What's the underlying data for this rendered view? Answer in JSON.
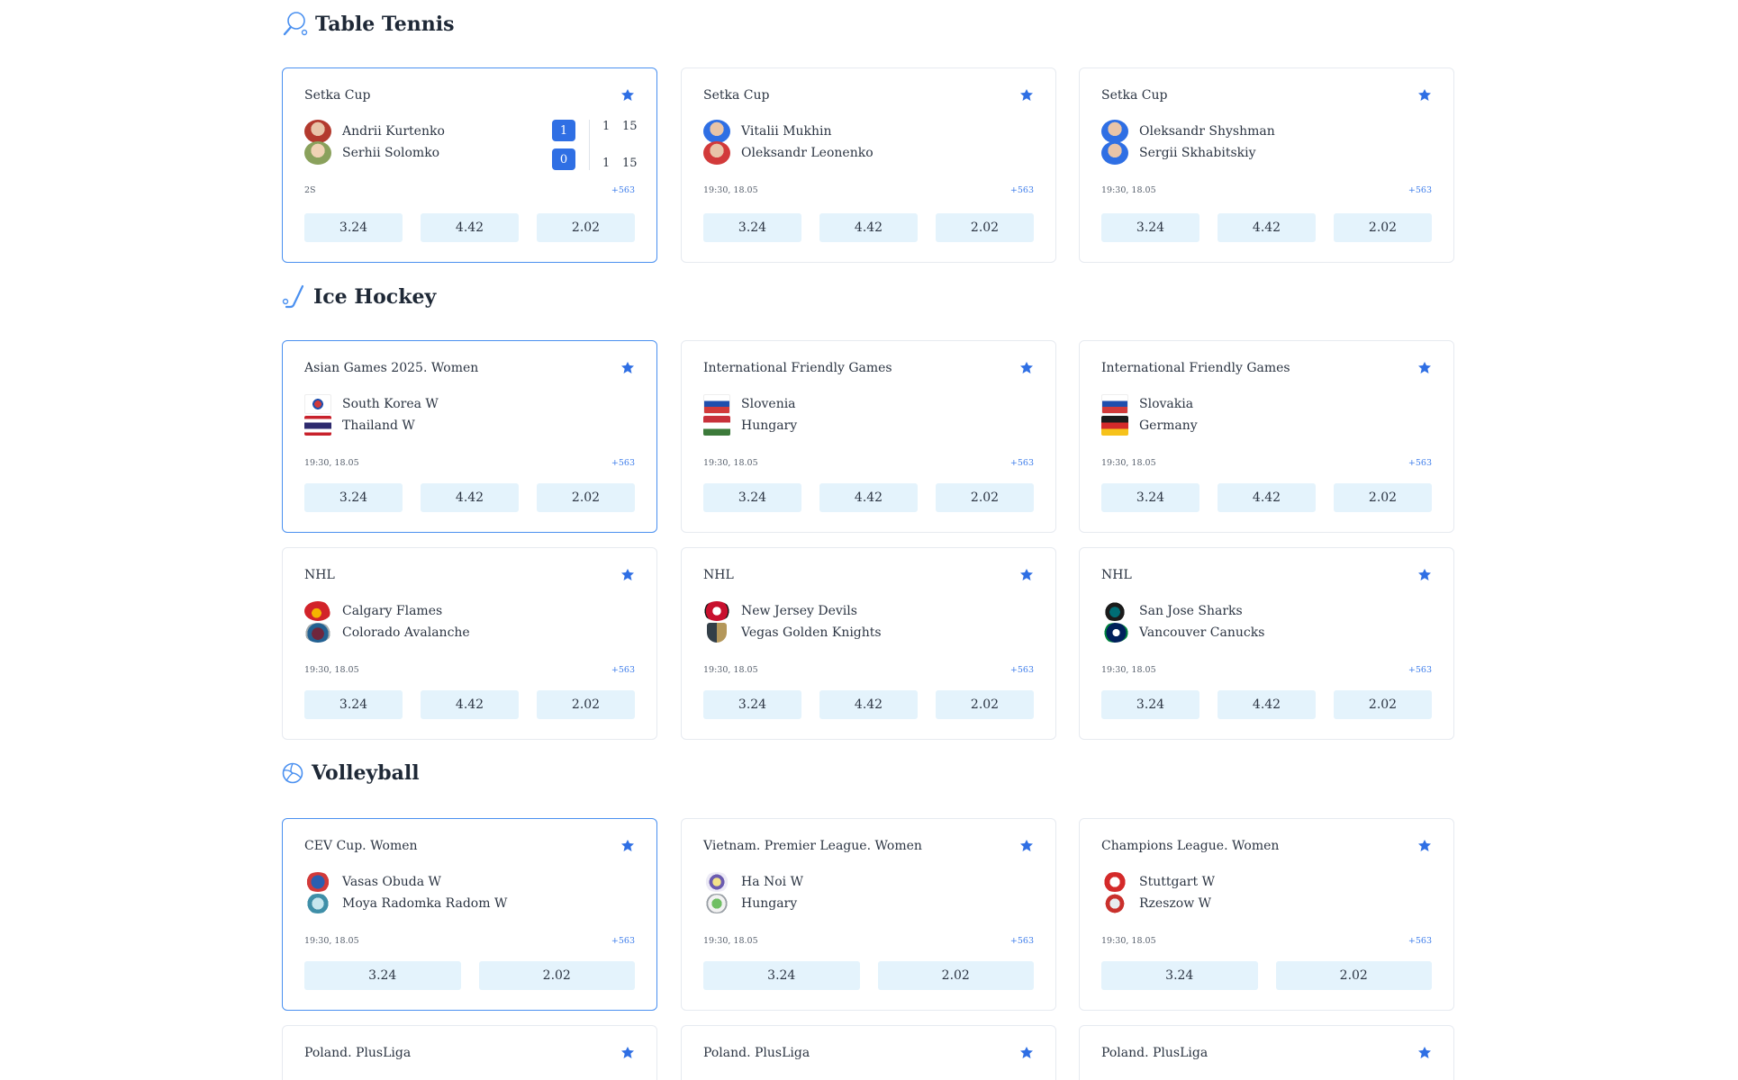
{
  "sections": [
    {
      "title": "Table Tennis",
      "icon": "table-tennis-icon"
    },
    {
      "title": "Ice Hockey",
      "icon": "ice-hockey-icon"
    },
    {
      "title": "Volleyball",
      "icon": "volleyball-icon"
    }
  ],
  "cards": [
    {
      "league": "Setka Cup",
      "team1": "Andrii Kurtenko",
      "team2": "Serhii Solomko",
      "meta": "2S",
      "more": "+563",
      "odds": [
        "3.24",
        "4.42",
        "2.02"
      ],
      "live": {
        "score1": "1",
        "score2": "0",
        "sets1": "1",
        "sets2": "1",
        "points1": "15",
        "points2": "15"
      }
    },
    {
      "league": "Setka Cup",
      "team1": "Vitalii Mukhin",
      "team2": "Oleksandr Leonenko",
      "meta": "19:30,  18.05",
      "more": "+563",
      "odds": [
        "3.24",
        "4.42",
        "2.02"
      ]
    },
    {
      "league": "Setka Cup",
      "team1": "Oleksandr Shyshman",
      "team2": "Sergii Skhabitskiy",
      "meta": "19:30,  18.05",
      "more": "+563",
      "odds": [
        "3.24",
        "4.42",
        "2.02"
      ]
    },
    {
      "league": "Asian Games 2025. Women",
      "team1": "South Korea W",
      "team2": "Thailand W",
      "meta": "19:30,  18.05",
      "more": "+563",
      "odds": [
        "3.24",
        "4.42",
        "2.02"
      ]
    },
    {
      "league": "International Friendly Games",
      "team1": "Slovenia",
      "team2": "Hungary",
      "meta": "19:30,  18.05",
      "more": "+563",
      "odds": [
        "3.24",
        "4.42",
        "2.02"
      ]
    },
    {
      "league": "International Friendly Games",
      "team1": "Slovakia",
      "team2": "Germany",
      "meta": "19:30,  18.05",
      "more": "+563",
      "odds": [
        "3.24",
        "4.42",
        "2.02"
      ]
    },
    {
      "league": "NHL",
      "team1": "Calgary Flames",
      "team2": "Colorado Avalanche",
      "meta": "19:30,  18.05",
      "more": "+563",
      "odds": [
        "3.24",
        "4.42",
        "2.02"
      ]
    },
    {
      "league": "NHL",
      "team1": "New Jersey Devils",
      "team2": "Vegas Golden Knights",
      "meta": "19:30,  18.05",
      "more": "+563",
      "odds": [
        "3.24",
        "4.42",
        "2.02"
      ]
    },
    {
      "league": "NHL",
      "team1": "San Jose Sharks",
      "team2": "Vancouver Canucks",
      "meta": "19:30,  18.05",
      "more": "+563",
      "odds": [
        "3.24",
        "4.42",
        "2.02"
      ]
    },
    {
      "league": "CEV Cup. Women",
      "team1": "Vasas Obuda W",
      "team2": "Moya Radomka Radom W",
      "meta": "19:30,  18.05",
      "more": "+563",
      "odds": [
        "3.24",
        "2.02"
      ]
    },
    {
      "league": "Vietnam. Premier League. Women",
      "team1": "Ha Noi W",
      "team2": "Hungary",
      "meta": "19:30,  18.05",
      "more": "+563",
      "odds": [
        "3.24",
        "2.02"
      ]
    },
    {
      "league": "Champions League. Women",
      "team1": "Stuttgart W",
      "team2": "Rzeszow W",
      "meta": "19:30,  18.05",
      "more": "+563",
      "odds": [
        "3.24",
        "2.02"
      ]
    },
    {
      "league": "Poland. PlusLiga"
    },
    {
      "league": "Poland. PlusLiga"
    },
    {
      "league": "Poland. PlusLiga"
    }
  ],
  "colors": {
    "accent": "#2f6fe4",
    "odds_bg": "#e4f3fc",
    "active_border": "#4a90f0"
  }
}
